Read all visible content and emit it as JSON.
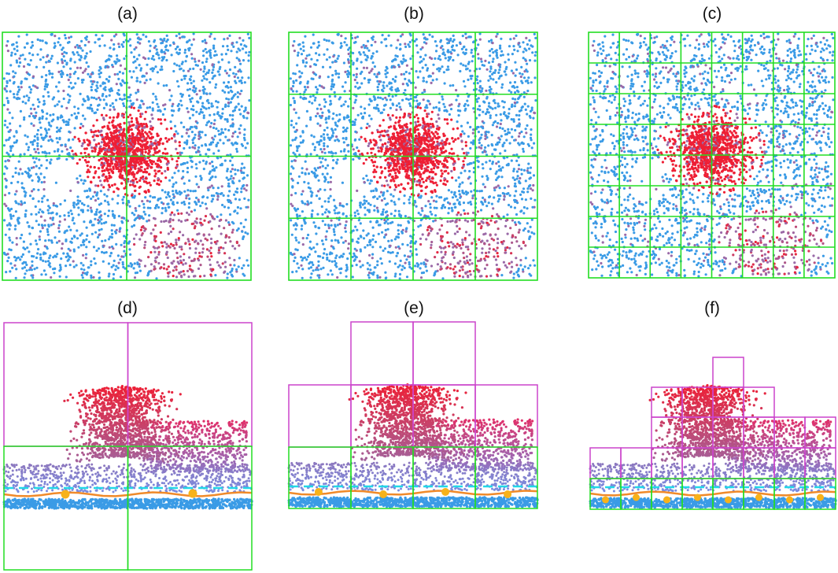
{
  "panels": [
    {
      "label": "(a)",
      "view": "top",
      "grid_divisions": 2
    },
    {
      "label": "(b)",
      "view": "top",
      "grid_divisions": 4
    },
    {
      "label": "(c)",
      "view": "top",
      "grid_divisions": 8
    },
    {
      "label": "(d)",
      "view": "side",
      "level": 1
    },
    {
      "label": "(e)",
      "view": "side",
      "level": 2
    },
    {
      "label": "(f)",
      "view": "side",
      "level": 3
    }
  ],
  "colors": {
    "ground_points": "#3a9be6",
    "canopy_points": "#ee1f35",
    "mid_points": "#9a6aa8",
    "ground_grid": "#22dd22",
    "vegetation_grid": "#cc44cc",
    "terrain_line": "#f08a2a",
    "threshold_line": "#22d8e8",
    "seed_points": "#f7b21a"
  }
}
